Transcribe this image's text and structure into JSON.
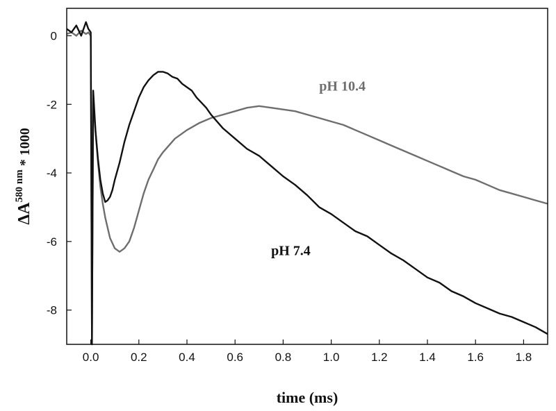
{
  "chart_data": {
    "type": "line",
    "xlabel": "time (ms)",
    "ylabel": {
      "delta": "ΔA",
      "subscript": "580 nm",
      "suffix": " * 1000"
    },
    "xlim": [
      -0.1,
      1.9
    ],
    "ylim": [
      -9,
      0.8
    ],
    "xticks": [
      0.0,
      0.2,
      0.4,
      0.6,
      0.8,
      1.0,
      1.2,
      1.4,
      1.6,
      1.8
    ],
    "xtick_labels": [
      "0.0",
      "0.2",
      "0.4",
      "0.6",
      "0.8",
      "1.0",
      "1.2",
      "1.4",
      "1.6",
      "1.8"
    ],
    "yticks": [
      0,
      -2,
      -4,
      -6,
      -8
    ],
    "ytick_labels": [
      "0",
      "-2",
      "-4",
      "-6",
      "-8"
    ],
    "grid": false,
    "series": [
      {
        "name": "pH 7.4",
        "color": "#111111",
        "x": [
          -0.1,
          -0.08,
          -0.06,
          -0.04,
          -0.02,
          -0.01,
          0.0,
          0.005,
          0.01,
          0.02,
          0.03,
          0.04,
          0.05,
          0.06,
          0.07,
          0.08,
          0.09,
          0.1,
          0.12,
          0.14,
          0.16,
          0.18,
          0.2,
          0.22,
          0.24,
          0.26,
          0.28,
          0.3,
          0.32,
          0.34,
          0.36,
          0.38,
          0.4,
          0.42,
          0.44,
          0.46,
          0.48,
          0.5,
          0.55,
          0.6,
          0.65,
          0.7,
          0.75,
          0.8,
          0.85,
          0.9,
          0.95,
          1.0,
          1.05,
          1.1,
          1.15,
          1.2,
          1.25,
          1.3,
          1.35,
          1.4,
          1.45,
          1.5,
          1.55,
          1.6,
          1.65,
          1.7,
          1.75,
          1.8,
          1.85,
          1.9
        ],
        "y": [
          0.2,
          0.1,
          0.3,
          0.0,
          0.4,
          0.2,
          0.1,
          -9.0,
          -1.6,
          -2.8,
          -3.6,
          -4.2,
          -4.6,
          -4.85,
          -4.8,
          -4.7,
          -4.5,
          -4.2,
          -3.7,
          -3.1,
          -2.6,
          -2.2,
          -1.8,
          -1.5,
          -1.3,
          -1.15,
          -1.05,
          -1.05,
          -1.1,
          -1.2,
          -1.25,
          -1.4,
          -1.5,
          -1.6,
          -1.8,
          -1.95,
          -2.1,
          -2.3,
          -2.7,
          -3.0,
          -3.3,
          -3.5,
          -3.8,
          -4.1,
          -4.35,
          -4.65,
          -5.0,
          -5.2,
          -5.45,
          -5.7,
          -5.85,
          -6.1,
          -6.35,
          -6.55,
          -6.8,
          -7.05,
          -7.2,
          -7.45,
          -7.6,
          -7.8,
          -7.95,
          -8.1,
          -8.2,
          -8.35,
          -8.5,
          -8.7
        ]
      },
      {
        "name": "pH 10.4",
        "color": "#6e6e6e",
        "x": [
          -0.1,
          -0.08,
          -0.06,
          -0.04,
          -0.02,
          -0.01,
          0.0,
          0.005,
          0.01,
          0.02,
          0.03,
          0.04,
          0.05,
          0.06,
          0.08,
          0.1,
          0.12,
          0.14,
          0.16,
          0.18,
          0.2,
          0.22,
          0.24,
          0.26,
          0.28,
          0.3,
          0.35,
          0.4,
          0.45,
          0.5,
          0.55,
          0.6,
          0.65,
          0.7,
          0.75,
          0.8,
          0.85,
          0.9,
          0.95,
          1.0,
          1.05,
          1.1,
          1.15,
          1.2,
          1.25,
          1.3,
          1.35,
          1.4,
          1.45,
          1.5,
          1.55,
          1.6,
          1.65,
          1.7,
          1.75,
          1.8,
          1.85,
          1.9
        ],
        "y": [
          0.05,
          0.1,
          0.0,
          0.15,
          0.05,
          0.1,
          0.0,
          -9.0,
          -1.9,
          -2.8,
          -3.7,
          -4.4,
          -4.9,
          -5.3,
          -5.9,
          -6.2,
          -6.3,
          -6.2,
          -6.0,
          -5.6,
          -5.1,
          -4.6,
          -4.2,
          -3.9,
          -3.6,
          -3.4,
          -3.0,
          -2.75,
          -2.55,
          -2.4,
          -2.3,
          -2.2,
          -2.1,
          -2.05,
          -2.1,
          -2.15,
          -2.2,
          -2.3,
          -2.4,
          -2.5,
          -2.6,
          -2.75,
          -2.9,
          -3.05,
          -3.2,
          -3.35,
          -3.5,
          -3.65,
          -3.8,
          -3.95,
          -4.1,
          -4.2,
          -4.35,
          -4.5,
          -4.6,
          -4.7,
          -4.8,
          -4.9
        ]
      }
    ],
    "annotations": [
      {
        "text": "pH 10.4",
        "x": 0.95,
        "y": -1.6,
        "color": "#6e6e6e"
      },
      {
        "text": "pH 7.4",
        "x": 0.75,
        "y": -6.4,
        "color": "#111111"
      }
    ]
  }
}
